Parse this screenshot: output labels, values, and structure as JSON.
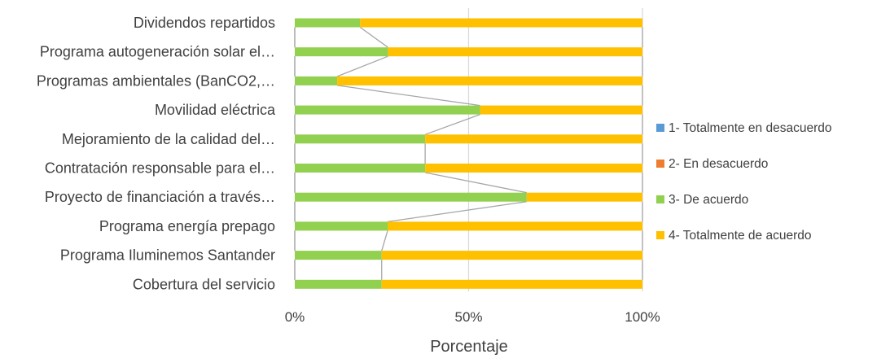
{
  "chart_data": {
    "type": "bar",
    "orientation": "horizontal",
    "stacked": "percent",
    "title": "",
    "xlabel": "Porcentaje",
    "ylabel": "",
    "xlim": [
      0,
      100
    ],
    "x_ticks": [
      "0%",
      "50%",
      "100%"
    ],
    "grid": true,
    "legend_position": "right",
    "categories": [
      "Dividendos repartidos",
      "Programa autogeneración solar el…",
      "Programas ambientales (BanCO2,…",
      "Movilidad eléctrica",
      "Mejoramiento de la calidad del…",
      "Contratación responsable para el…",
      "Proyecto de financiación a través…",
      "Programa energía prepago",
      "Programa Iluminemos Santander",
      "Cobertura del servicio"
    ],
    "series": [
      {
        "name": "1- Totalmente en desacuerdo",
        "color": "#5B9BD5",
        "values": [
          0,
          0,
          0,
          0,
          0,
          0,
          0,
          0,
          0,
          0
        ]
      },
      {
        "name": "2- En desacuerdo",
        "color": "#ED7D31",
        "values": [
          0,
          0,
          0,
          0,
          0,
          0,
          0,
          0,
          0,
          0
        ]
      },
      {
        "name": "3- De acuerdo",
        "color": "#92D050",
        "values": [
          18.8,
          26.8,
          12.2,
          53.3,
          37.5,
          37.5,
          66.7,
          26.7,
          25,
          25
        ]
      },
      {
        "name": "4- Totalmente de acuerdo",
        "color": "#FFC000",
        "values": [
          81.2,
          73.2,
          87.8,
          46.7,
          62.5,
          62.5,
          33.3,
          73.3,
          75,
          75
        ]
      }
    ],
    "series_lines": true
  }
}
